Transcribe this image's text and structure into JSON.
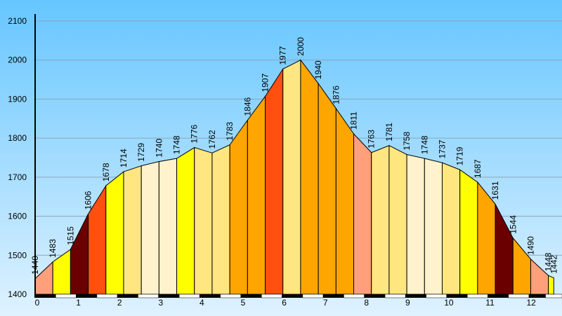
{
  "chart_data": {
    "type": "area",
    "x": [
      0,
      0.43,
      0.86,
      1.29,
      1.72,
      2.15,
      2.58,
      3.01,
      3.44,
      3.87,
      4.3,
      4.73,
      5.16,
      5.59,
      6.02,
      6.45,
      6.88,
      7.31,
      7.74,
      8.17,
      8.6,
      9.03,
      9.46,
      9.89,
      10.32,
      10.75,
      11.18,
      11.61,
      12.04,
      12.47,
      12.6
    ],
    "values": [
      1440,
      1483,
      1515,
      1606,
      1678,
      1714,
      1729,
      1740,
      1748,
      1776,
      1762,
      1783,
      1846,
      1907,
      1977,
      2000,
      1940,
      1876,
      1811,
      1763,
      1781,
      1758,
      1748,
      1737,
      1719,
      1687,
      1631,
      1544,
      1490,
      1448,
      1442
    ],
    "segment_colors": [
      "#ffa07a",
      "#ffff00",
      "#6b0000",
      "#ff5010",
      "#ffff00",
      "#ffe680",
      "#fff2cc",
      "#fff2cc",
      "#ffff00",
      "#ffe680",
      "#ffe680",
      "#ffa500",
      "#ffa500",
      "#ff5010",
      "#ffe680",
      "#ffa500",
      "#ffa500",
      "#ffa500",
      "#ffa07a",
      "#ffe680",
      "#ffe680",
      "#fff2cc",
      "#fff2cc",
      "#ffe680",
      "#ffff00",
      "#ffa500",
      "#6b0000",
      "#ffa500",
      "#ffa07a",
      "#ffff00"
    ],
    "xlim": [
      0,
      12.8
    ],
    "ylim": [
      1400,
      2100
    ],
    "xticks": [
      0,
      1,
      2,
      3,
      4,
      5,
      6,
      7,
      8,
      9,
      10,
      11,
      12
    ],
    "yticks": [
      1400,
      1500,
      1600,
      1700,
      1800,
      1900,
      2000,
      2100
    ],
    "grid": true
  }
}
